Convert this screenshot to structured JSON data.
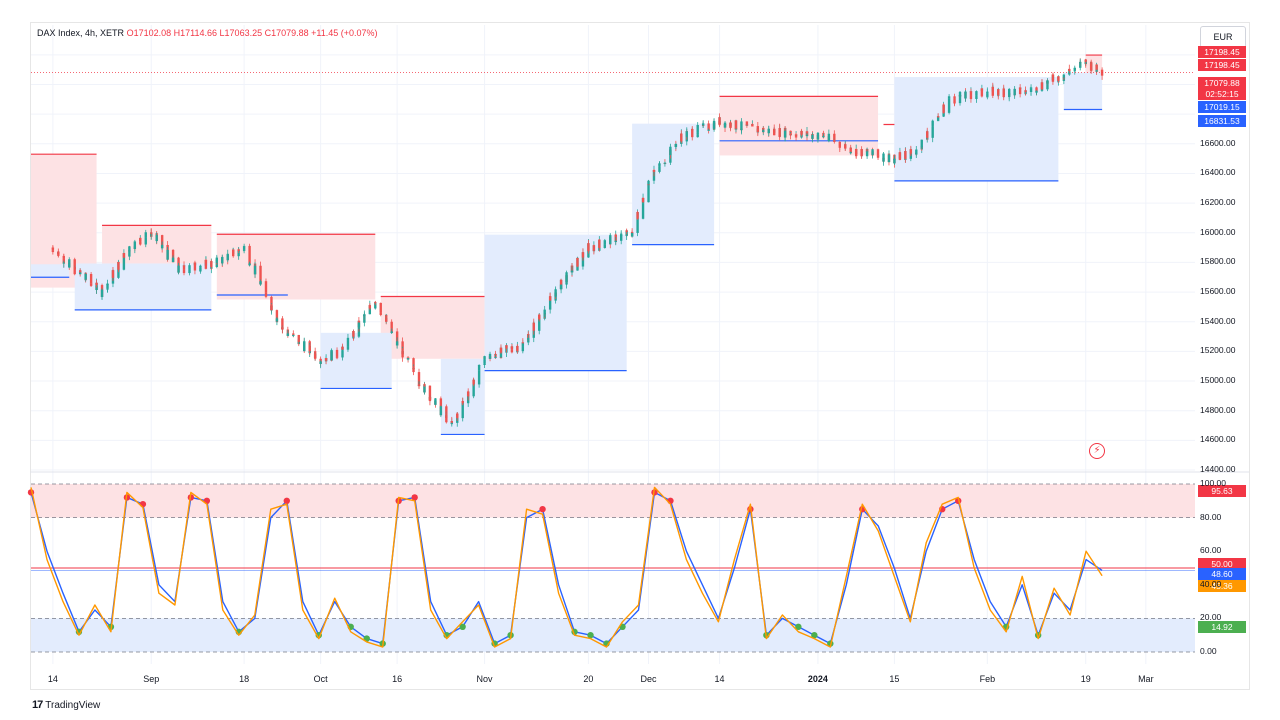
{
  "header": {
    "symbol": "DAX Index, 4h, XETR",
    "open_label": "O",
    "open": "17102.08",
    "high_label": "H",
    "high": "17114.66",
    "low_label": "L",
    "low": "17063.25",
    "close_label": "C",
    "close": "17079.88",
    "change": "+11.45 (+0.07%)"
  },
  "currency_button": "EUR",
  "price_badges": [
    {
      "text": "17198.45",
      "color": "#f23645"
    },
    {
      "text": "17198.45",
      "color": "#f23645"
    },
    {
      "text": "17079.88",
      "color": "#f23645"
    },
    {
      "text": "02:52:15",
      "color": "#f23645"
    },
    {
      "text": "17019.15",
      "color": "#2962ff"
    },
    {
      "text": "16831.53",
      "color": "#2962ff"
    }
  ],
  "price_axis_ticks": [
    "16600.00",
    "16400.00",
    "16200.00",
    "16000.00",
    "15800.00",
    "15600.00",
    "15400.00",
    "15200.00",
    "15000.00",
    "14800.00",
    "14600.00",
    "14400.00"
  ],
  "osc_badges": [
    {
      "text": "95.63",
      "color": "#f23645"
    },
    {
      "text": "50.00",
      "color": "#f23645"
    },
    {
      "text": "48.60",
      "color": "#2962ff"
    },
    {
      "text": "45.36",
      "color": "#ff9800"
    },
    {
      "text": "14.92",
      "color": "#4caf50"
    }
  ],
  "osc_axis_ticks": [
    "100.00",
    "80.00",
    "60.00",
    "40.00",
    "20.00",
    "0.00"
  ],
  "time_axis": [
    {
      "label": "14",
      "bold": false
    },
    {
      "label": "Sep",
      "bold": false
    },
    {
      "label": "18",
      "bold": false
    },
    {
      "label": "Oct",
      "bold": false
    },
    {
      "label": "16",
      "bold": false
    },
    {
      "label": "Nov",
      "bold": false
    },
    {
      "label": "20",
      "bold": false
    },
    {
      "label": "Dec",
      "bold": false
    },
    {
      "label": "14",
      "bold": false
    },
    {
      "label": "2024",
      "bold": true
    },
    {
      "label": "15",
      "bold": false
    },
    {
      "label": "Feb",
      "bold": false
    },
    {
      "label": "19",
      "bold": false
    },
    {
      "label": "Mar",
      "bold": false
    }
  ],
  "branding": "TradingView",
  "colors": {
    "up": "#26a69a",
    "down": "#ef5350",
    "resistance": "#f23645",
    "support": "#2962ff",
    "stoch_k": "#2962ff",
    "stoch_d": "#ff9800",
    "ob_zone": "#fde2e4",
    "os_zone": "#e3ecfd"
  },
  "chart_data": [
    {
      "type": "candlestick",
      "title": "DAX Index, 4h, XETR",
      "ylim": [
        14400,
        17300
      ],
      "x_dates": [
        "2023-08-14",
        "2023-09-01",
        "2023-09-18",
        "2023-10-02",
        "2023-10-16",
        "2023-11-01",
        "2023-11-20",
        "2023-12-01",
        "2023-12-14",
        "2024-01-01",
        "2024-01-15",
        "2024-02-01",
        "2024-02-19"
      ],
      "price_path": [
        {
          "date": "2023-08-14",
          "close": 15900
        },
        {
          "date": "2023-08-18",
          "close": 15750
        },
        {
          "date": "2023-08-23",
          "close": 15600
        },
        {
          "date": "2023-08-28",
          "close": 15900
        },
        {
          "date": "2023-09-01",
          "close": 16000
        },
        {
          "date": "2023-09-06",
          "close": 15750
        },
        {
          "date": "2023-09-13",
          "close": 15800
        },
        {
          "date": "2023-09-18",
          "close": 15900
        },
        {
          "date": "2023-09-25",
          "close": 15350
        },
        {
          "date": "2023-10-02",
          "close": 15150
        },
        {
          "date": "2023-10-06",
          "close": 15200
        },
        {
          "date": "2023-10-12",
          "close": 15550
        },
        {
          "date": "2023-10-16",
          "close": 15250
        },
        {
          "date": "2023-10-20",
          "close": 15000
        },
        {
          "date": "2023-10-26",
          "close": 14700
        },
        {
          "date": "2023-11-01",
          "close": 15150
        },
        {
          "date": "2023-11-08",
          "close": 15250
        },
        {
          "date": "2023-11-14",
          "close": 15600
        },
        {
          "date": "2023-11-20",
          "close": 15900
        },
        {
          "date": "2023-11-28",
          "close": 16000
        },
        {
          "date": "2023-12-01",
          "close": 16350
        },
        {
          "date": "2023-12-07",
          "close": 16650
        },
        {
          "date": "2023-12-14",
          "close": 16750
        },
        {
          "date": "2023-12-20",
          "close": 16700
        },
        {
          "date": "2024-01-02",
          "close": 16650
        },
        {
          "date": "2024-01-08",
          "close": 16550
        },
        {
          "date": "2024-01-15",
          "close": 16500
        },
        {
          "date": "2024-01-19",
          "close": 16550
        },
        {
          "date": "2024-01-25",
          "close": 16900
        },
        {
          "date": "2024-02-01",
          "close": 16950
        },
        {
          "date": "2024-02-08",
          "close": 16950
        },
        {
          "date": "2024-02-14",
          "close": 17050
        },
        {
          "date": "2024-02-19",
          "close": 17150
        },
        {
          "date": "2024-02-22",
          "close": 17079.88
        }
      ],
      "resistance_levels": [
        {
          "from": "2023-08-10",
          "to": "2023-08-22",
          "value": 16530
        },
        {
          "from": "2023-08-23",
          "to": "2023-09-12",
          "value": 16050
        },
        {
          "from": "2023-09-13",
          "to": "2023-10-12",
          "value": 15990
        },
        {
          "from": "2023-10-13",
          "to": "2023-11-01",
          "value": 15570
        },
        {
          "from": "2023-12-14",
          "to": "2024-01-12",
          "value": 16920
        },
        {
          "from": "2024-01-13",
          "to": "2024-01-24",
          "value": 16730
        },
        {
          "from": "2024-02-19",
          "to": "2024-02-22",
          "value": 17198.45
        }
      ],
      "support_levels": [
        {
          "from": "2023-08-10",
          "to": "2023-08-17",
          "value": 15700
        },
        {
          "from": "2023-08-18",
          "to": "2023-09-12",
          "value": 15480
        },
        {
          "from": "2023-09-13",
          "to": "2023-09-26",
          "value": 15580
        },
        {
          "from": "2023-10-02",
          "to": "2023-10-15",
          "value": 14950
        },
        {
          "from": "2023-10-24",
          "to": "2023-11-01",
          "value": 14640
        },
        {
          "from": "2023-11-01",
          "to": "2023-11-27",
          "value": 15070
        },
        {
          "from": "2023-11-28",
          "to": "2023-12-13",
          "value": 15920
        },
        {
          "from": "2023-12-14",
          "to": "2024-01-12",
          "value": 16620
        },
        {
          "from": "2024-01-15",
          "to": "2024-02-14",
          "value": 16350
        },
        {
          "from": "2024-02-15",
          "to": "2024-02-22",
          "value": 16831.53
        }
      ],
      "last_price": 17079.88
    },
    {
      "type": "line",
      "ylim": [
        0,
        100
      ],
      "levels": [
        20,
        50,
        80,
        100
      ],
      "series": [
        {
          "color": "#2962ff",
          "values": [
            95,
            60,
            35,
            12,
            25,
            15,
            92,
            88,
            40,
            30,
            92,
            90,
            30,
            12,
            20,
            80,
            90,
            30,
            10,
            30,
            15,
            8,
            5,
            90,
            92,
            30,
            10,
            15,
            30,
            5,
            10,
            80,
            85,
            40,
            12,
            10,
            5,
            15,
            25,
            95,
            90,
            60,
            40,
            20,
            50,
            85,
            10,
            20,
            15,
            10,
            5,
            40,
            85,
            75,
            50,
            20,
            60,
            85,
            90,
            55,
            30,
            15,
            40,
            10,
            35,
            25,
            55,
            48.6
          ]
        },
        {
          "color": "#ff9800",
          "values": [
            98,
            55,
            30,
            10,
            28,
            12,
            95,
            86,
            35,
            28,
            95,
            88,
            25,
            10,
            22,
            85,
            88,
            25,
            8,
            32,
            12,
            6,
            3,
            92,
            90,
            25,
            8,
            18,
            28,
            3,
            8,
            85,
            82,
            35,
            10,
            8,
            3,
            18,
            28,
            98,
            88,
            55,
            35,
            18,
            55,
            88,
            8,
            22,
            12,
            8,
            3,
            45,
            88,
            72,
            45,
            18,
            65,
            88,
            92,
            50,
            25,
            12,
            45,
            8,
            38,
            22,
            60,
            45.36
          ]
        }
      ],
      "last_values": {
        "k": 48.6,
        "d": 45.36
      }
    }
  ]
}
